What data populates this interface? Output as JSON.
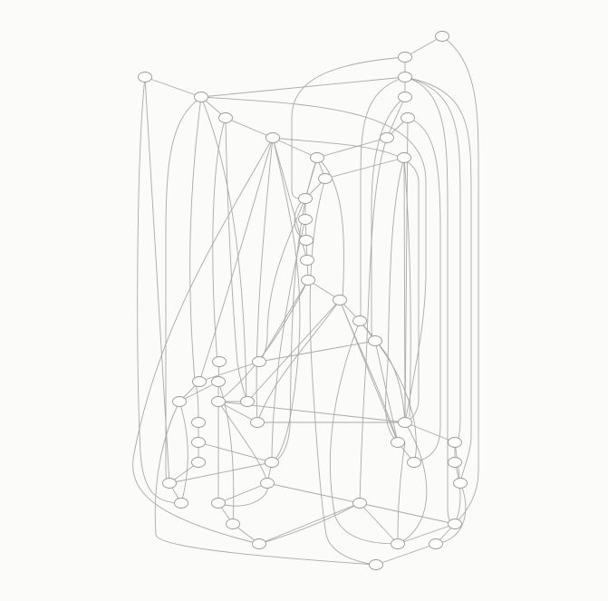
{
  "graph": {
    "type": "undirected-network",
    "labels_visible": false,
    "colors": {
      "background": "#fbfbfa",
      "edge": "#a9a9a9",
      "node_stroke": "#9a9a9a",
      "node_fill": "#fdfdfc"
    },
    "node_count": 56
  }
}
